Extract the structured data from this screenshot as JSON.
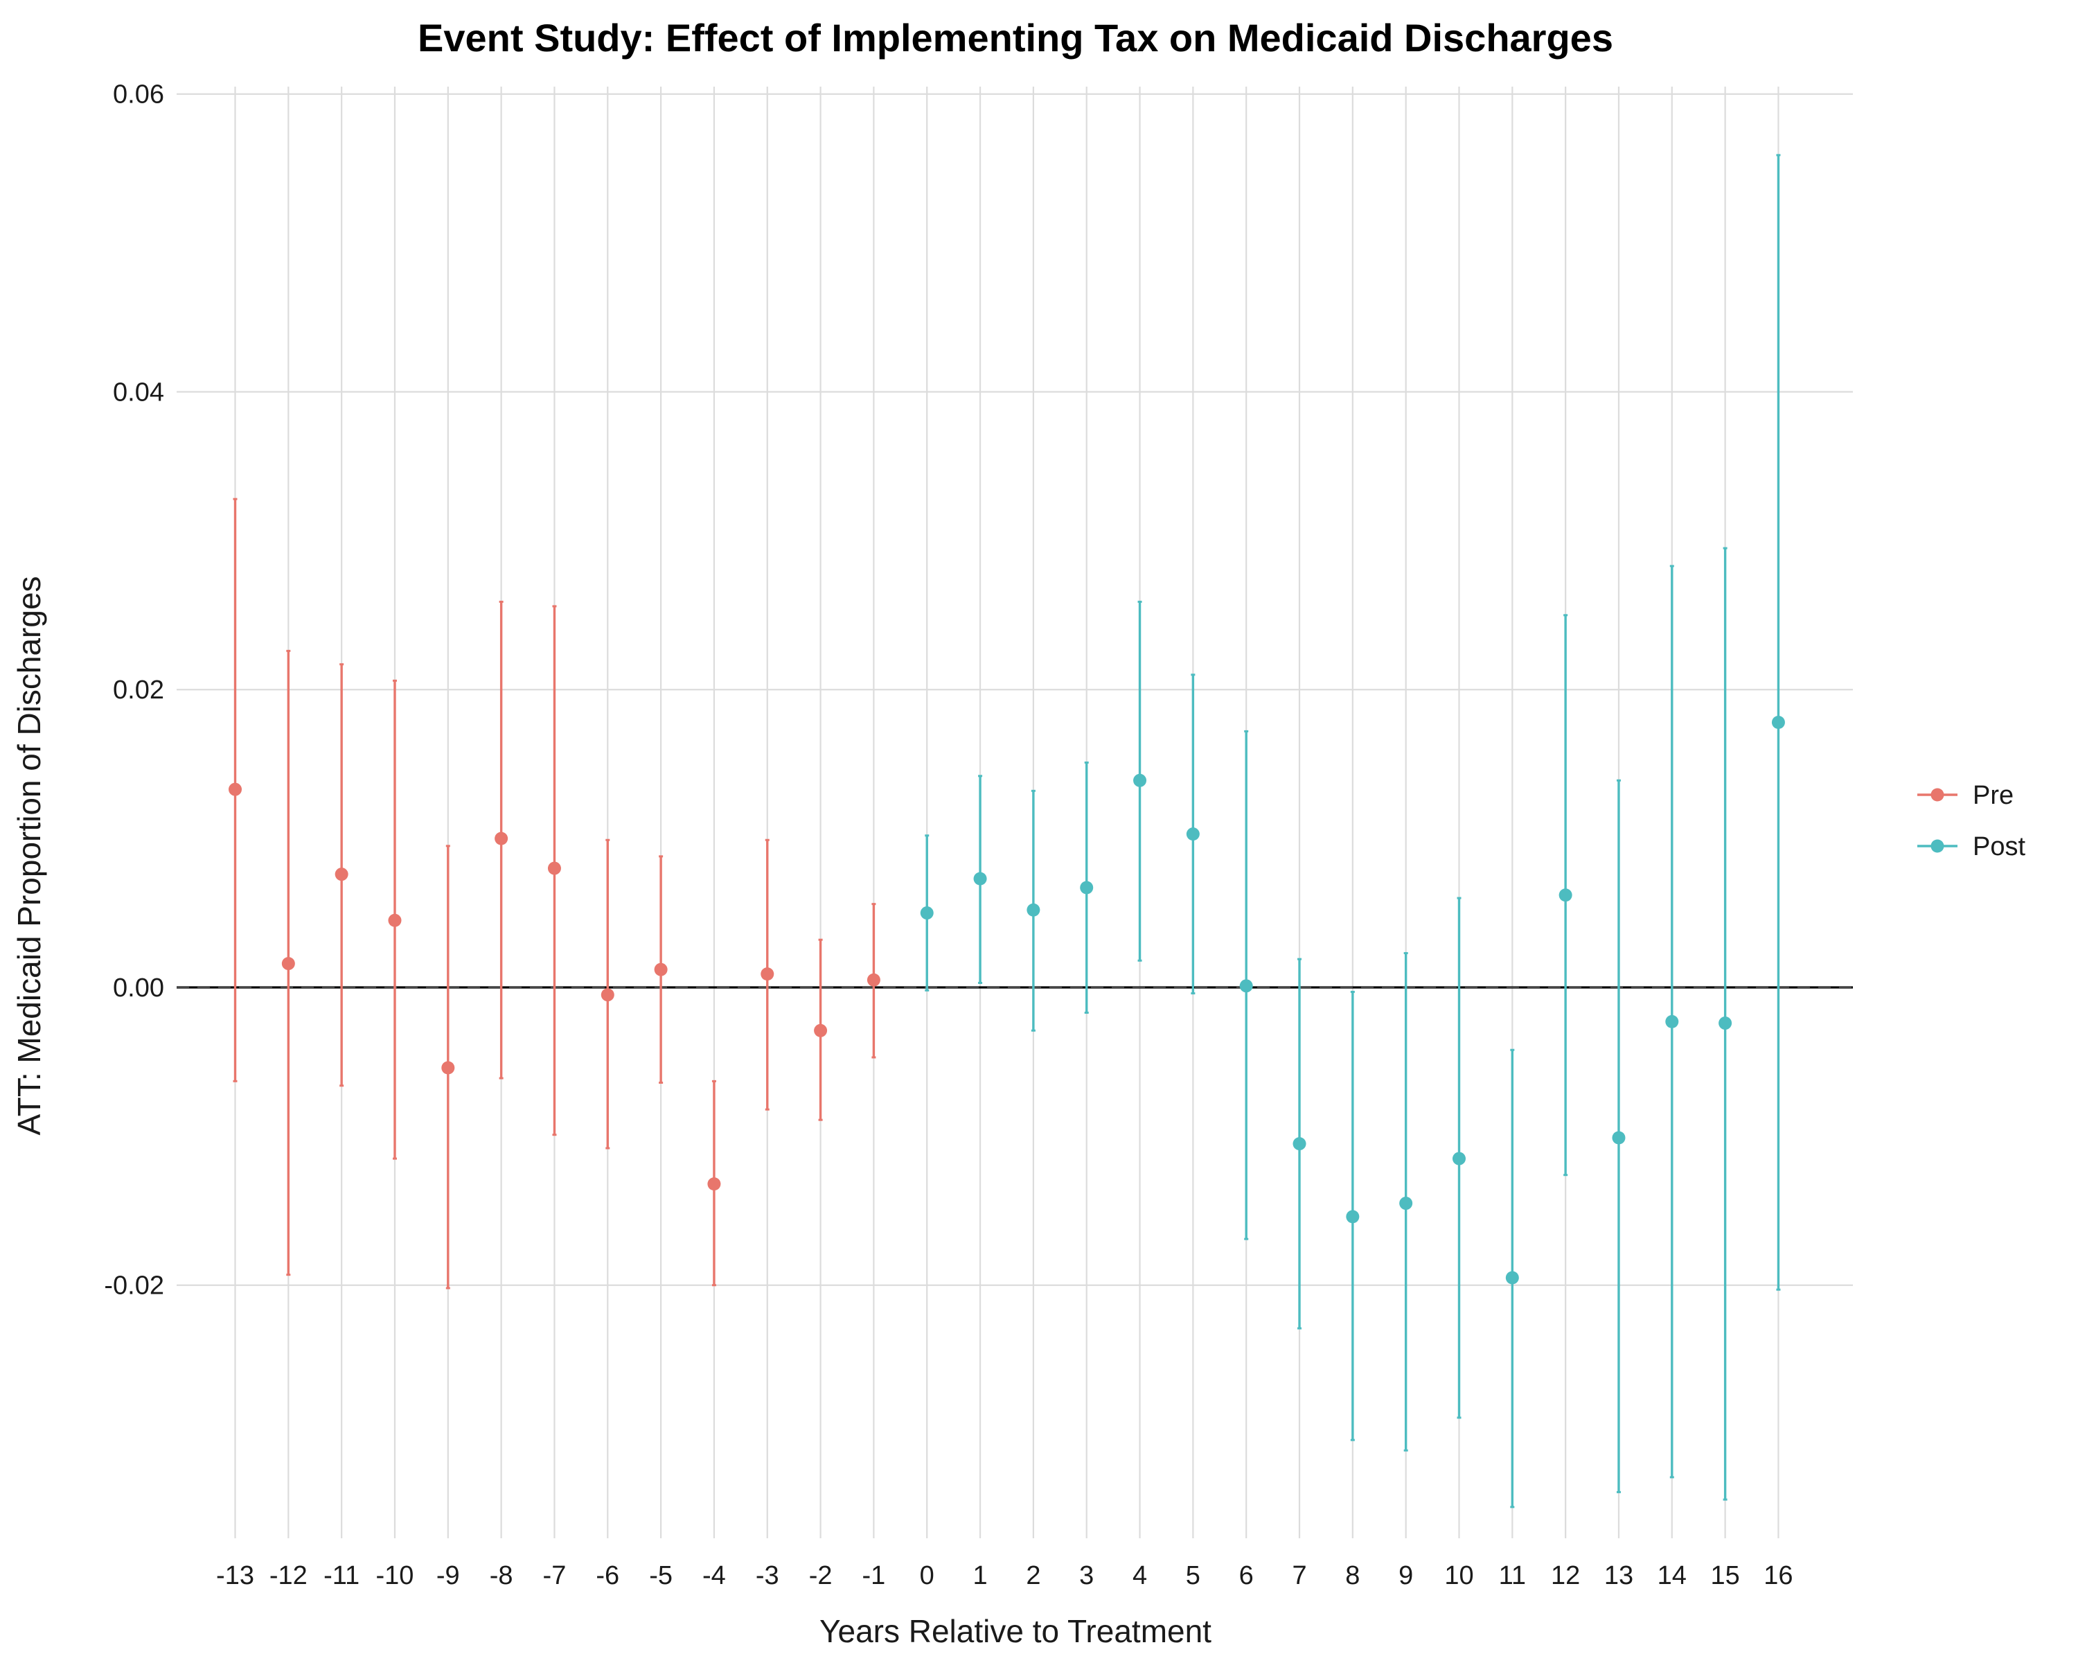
{
  "chart_data": {
    "type": "scatter",
    "title": "Event Study: Effect of Implementing Tax on Medicaid Discharges",
    "xlabel": "Years Relative to Treatment",
    "ylabel": "ATT: Medicaid Proportion of Discharges",
    "ylim": [
      -0.037,
      0.0605
    ],
    "y_ticks": [
      "-0.02",
      "0.00",
      "0.02",
      "0.04",
      "0.06"
    ],
    "y_tick_values": [
      -0.02,
      0.0,
      0.02,
      0.04,
      0.06
    ],
    "x_ticks": [
      "-13",
      "-12",
      "-11",
      "-10",
      "-9",
      "-8",
      "-7",
      "-6",
      "-5",
      "-4",
      "-3",
      "-2",
      "-1",
      "0",
      "1",
      "2",
      "3",
      "4",
      "5",
      "6",
      "7",
      "8",
      "9",
      "10",
      "11",
      "12",
      "13",
      "14",
      "15",
      "16"
    ],
    "reference_line": 0,
    "grid": true,
    "legend_position": "right",
    "series": [
      {
        "name": "Pre",
        "color": "#E8766C",
        "points": [
          {
            "x": -13,
            "y": 0.0133,
            "lo": -0.0063,
            "hi": 0.0328
          },
          {
            "x": -12,
            "y": 0.0016,
            "lo": -0.0193,
            "hi": 0.0226
          },
          {
            "x": -11,
            "y": 0.0076,
            "lo": -0.0066,
            "hi": 0.0217
          },
          {
            "x": -10,
            "y": 0.0045,
            "lo": -0.0115,
            "hi": 0.0206
          },
          {
            "x": -9,
            "y": -0.0054,
            "lo": -0.0202,
            "hi": 0.0095
          },
          {
            "x": -8,
            "y": 0.01,
            "lo": -0.0061,
            "hi": 0.0259
          },
          {
            "x": -7,
            "y": 0.008,
            "lo": -0.0099,
            "hi": 0.0256
          },
          {
            "x": -6,
            "y": -0.0005,
            "lo": -0.0108,
            "hi": 0.0099
          },
          {
            "x": -5,
            "y": 0.0012,
            "lo": -0.0064,
            "hi": 0.0088
          },
          {
            "x": -4,
            "y": -0.0132,
            "lo": -0.02,
            "hi": -0.0063
          },
          {
            "x": -3,
            "y": 0.0009,
            "lo": -0.0082,
            "hi": 0.0099
          },
          {
            "x": -2,
            "y": -0.0029,
            "lo": -0.0089,
            "hi": 0.0032
          },
          {
            "x": -1,
            "y": 0.0005,
            "lo": -0.0047,
            "hi": 0.0056
          }
        ]
      },
      {
        "name": "Post",
        "color": "#4DBCC0",
        "points": [
          {
            "x": 0,
            "y": 0.005,
            "lo": -0.0002,
            "hi": 0.0102
          },
          {
            "x": 1,
            "y": 0.0073,
            "lo": 0.0003,
            "hi": 0.0142
          },
          {
            "x": 2,
            "y": 0.0052,
            "lo": -0.0029,
            "hi": 0.0132
          },
          {
            "x": 3,
            "y": 0.0067,
            "lo": -0.0017,
            "hi": 0.0151
          },
          {
            "x": 4,
            "y": 0.0139,
            "lo": 0.0018,
            "hi": 0.0259
          },
          {
            "x": 5,
            "y": 0.0103,
            "lo": -0.0004,
            "hi": 0.021
          },
          {
            "x": 6,
            "y": 0.0001,
            "lo": -0.0169,
            "hi": 0.0172
          },
          {
            "x": 7,
            "y": -0.0105,
            "lo": -0.0229,
            "hi": 0.0019
          },
          {
            "x": 8,
            "y": -0.0154,
            "lo": -0.0304,
            "hi": -0.0003
          },
          {
            "x": 9,
            "y": -0.0145,
            "lo": -0.0311,
            "hi": 0.0023
          },
          {
            "x": 10,
            "y": -0.0115,
            "lo": -0.0289,
            "hi": 0.006
          },
          {
            "x": 11,
            "y": -0.0195,
            "lo": -0.0349,
            "hi": -0.0042
          },
          {
            "x": 12,
            "y": 0.0062,
            "lo": -0.0126,
            "hi": 0.025
          },
          {
            "x": 13,
            "y": -0.0101,
            "lo": -0.0339,
            "hi": 0.0139
          },
          {
            "x": 14,
            "y": -0.0023,
            "lo": -0.0329,
            "hi": 0.0283
          },
          {
            "x": 15,
            "y": -0.0024,
            "lo": -0.0344,
            "hi": 0.0295
          },
          {
            "x": 16,
            "y": 0.0178,
            "lo": -0.0203,
            "hi": 0.0559
          }
        ]
      }
    ]
  }
}
